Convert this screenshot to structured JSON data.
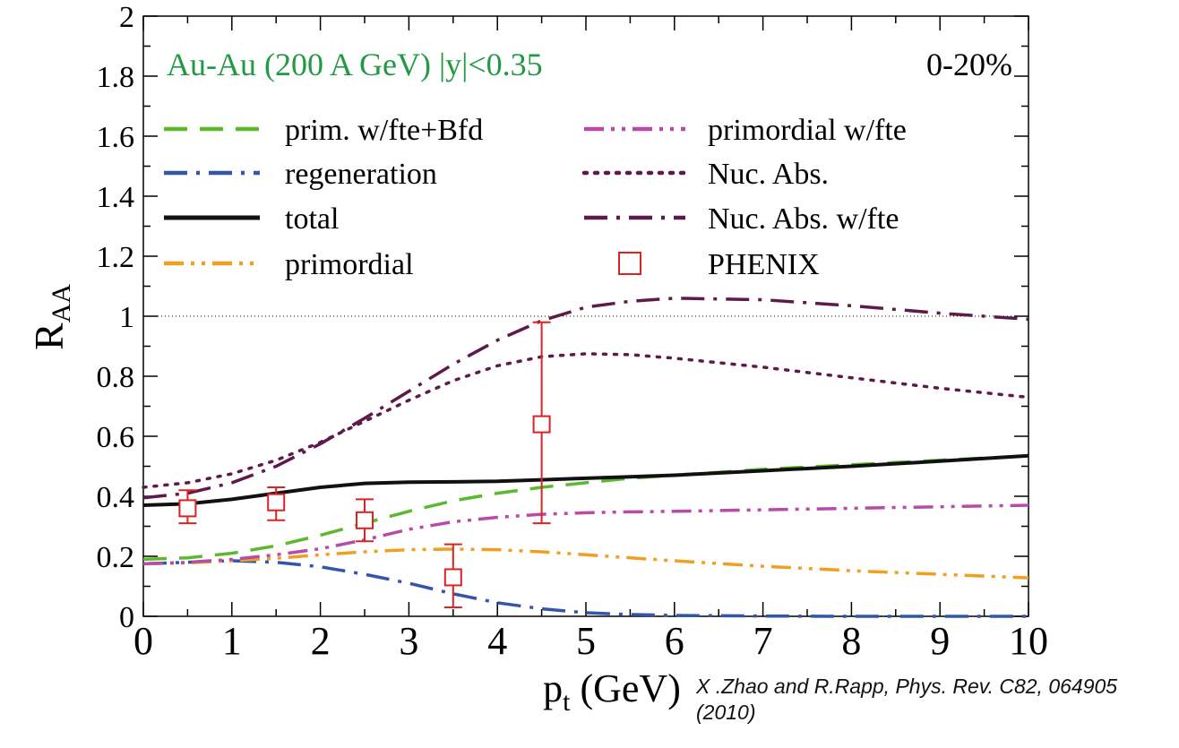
{
  "chart_data": {
    "type": "line",
    "title": "Au-Au (200 A GeV) |y|<0.35",
    "centrality": "0-20%",
    "xlabel": {
      "main": "p",
      "sub": "t",
      "unit": " (GeV)"
    },
    "ylabel": {
      "main": "R",
      "sub": "AA"
    },
    "xlim": [
      0,
      10
    ],
    "ylim": [
      0,
      2
    ],
    "x_ticks": [
      "0",
      "1",
      "2",
      "3",
      "4",
      "5",
      "6",
      "7",
      "8",
      "9",
      "10"
    ],
    "y_ticks": [
      "0",
      "0.2",
      "0.4",
      "0.6",
      "0.8",
      "1",
      "1.2",
      "1.4",
      "1.6",
      "1.8",
      "2"
    ],
    "reference_line": 1.0,
    "grid": false,
    "legend_position": "top",
    "series": [
      {
        "name": "prim. w/fte+Bfd",
        "color": "#5cb82e",
        "style": "dashed",
        "x": [
          0,
          0.5,
          1,
          1.5,
          2,
          2.5,
          3,
          3.5,
          4,
          4.5,
          5,
          5.5,
          6,
          7,
          8,
          9,
          10
        ],
        "y": [
          0.19,
          0.195,
          0.21,
          0.235,
          0.27,
          0.31,
          0.35,
          0.385,
          0.41,
          0.43,
          0.445,
          0.46,
          0.47,
          0.49,
          0.505,
          0.52,
          0.535
        ]
      },
      {
        "name": "regeneration",
        "color": "#3355aa",
        "style": "dash-dot",
        "x": [
          0,
          0.5,
          1,
          1.5,
          2,
          2.5,
          3,
          3.5,
          4,
          4.5,
          5,
          5.5,
          6,
          7,
          8,
          9,
          10
        ],
        "y": [
          0.175,
          0.18,
          0.185,
          0.18,
          0.165,
          0.14,
          0.11,
          0.075,
          0.045,
          0.025,
          0.012,
          0.006,
          0.003,
          0.001,
          0.0,
          0.0,
          0.0
        ]
      },
      {
        "name": "total",
        "color": "#111111",
        "style": "solid",
        "x": [
          0,
          0.5,
          1,
          1.5,
          2,
          2.5,
          3,
          3.5,
          4,
          4.5,
          5,
          5.5,
          6,
          7,
          8,
          9,
          10
        ],
        "y": [
          0.37,
          0.375,
          0.39,
          0.41,
          0.43,
          0.443,
          0.447,
          0.448,
          0.45,
          0.455,
          0.46,
          0.465,
          0.47,
          0.485,
          0.5,
          0.517,
          0.535
        ]
      },
      {
        "name": "primordial",
        "color": "#f0a020",
        "style": "dash-dot-dot",
        "x": [
          0,
          0.5,
          1,
          1.5,
          2,
          2.5,
          3,
          3.5,
          4,
          4.5,
          5,
          5.5,
          6,
          7,
          8,
          9,
          10
        ],
        "y": [
          0.175,
          0.178,
          0.185,
          0.193,
          0.205,
          0.215,
          0.222,
          0.224,
          0.222,
          0.215,
          0.205,
          0.195,
          0.185,
          0.167,
          0.152,
          0.14,
          0.128
        ]
      },
      {
        "name": "primordial w/fte",
        "color": "#b84aa8",
        "style": "dash-dot-dot",
        "x": [
          0,
          0.5,
          1,
          1.5,
          2,
          2.5,
          3,
          3.5,
          4,
          4.5,
          5,
          5.5,
          6,
          7,
          8,
          9,
          10
        ],
        "y": [
          0.175,
          0.18,
          0.19,
          0.205,
          0.225,
          0.255,
          0.29,
          0.315,
          0.33,
          0.34,
          0.345,
          0.348,
          0.35,
          0.355,
          0.36,
          0.365,
          0.37
        ]
      },
      {
        "name": "Nuc. Abs.",
        "color": "#5e1a4a",
        "style": "dotted",
        "x": [
          0,
          0.5,
          1,
          1.5,
          2,
          2.5,
          3,
          3.5,
          4,
          4.5,
          5,
          5.5,
          6,
          7,
          8,
          9,
          10
        ],
        "y": [
          0.43,
          0.445,
          0.475,
          0.52,
          0.58,
          0.65,
          0.72,
          0.785,
          0.835,
          0.865,
          0.875,
          0.872,
          0.86,
          0.83,
          0.795,
          0.76,
          0.73
        ]
      },
      {
        "name": "Nuc. Abs. w/fte",
        "color": "#5e1a4a",
        "style": "dash-dot",
        "x": [
          0,
          0.5,
          1,
          1.5,
          2,
          2.5,
          3,
          3.5,
          4,
          4.5,
          5,
          5.5,
          6,
          7,
          8,
          9,
          10
        ],
        "y": [
          0.395,
          0.41,
          0.445,
          0.5,
          0.575,
          0.66,
          0.75,
          0.84,
          0.92,
          0.985,
          1.03,
          1.05,
          1.06,
          1.055,
          1.035,
          1.01,
          0.99
        ]
      }
    ],
    "data_points": {
      "name": "PHENIX",
      "color": "#dd2222",
      "marker": "open-square",
      "points": [
        {
          "x": 0.5,
          "y": 0.36,
          "err_low": 0.31,
          "err_high": 0.42
        },
        {
          "x": 1.5,
          "y": 0.38,
          "err_low": 0.32,
          "err_high": 0.43
        },
        {
          "x": 2.5,
          "y": 0.32,
          "err_low": 0.25,
          "err_high": 0.39
        },
        {
          "x": 3.5,
          "y": 0.13,
          "err_low": 0.03,
          "err_high": 0.24
        },
        {
          "x": 4.5,
          "y": 0.64,
          "err_low": 0.31,
          "err_high": 0.98
        }
      ]
    }
  },
  "citation": "X .Zhao and R.Rapp, Phys. Rev. C82, 064905 (2010)"
}
